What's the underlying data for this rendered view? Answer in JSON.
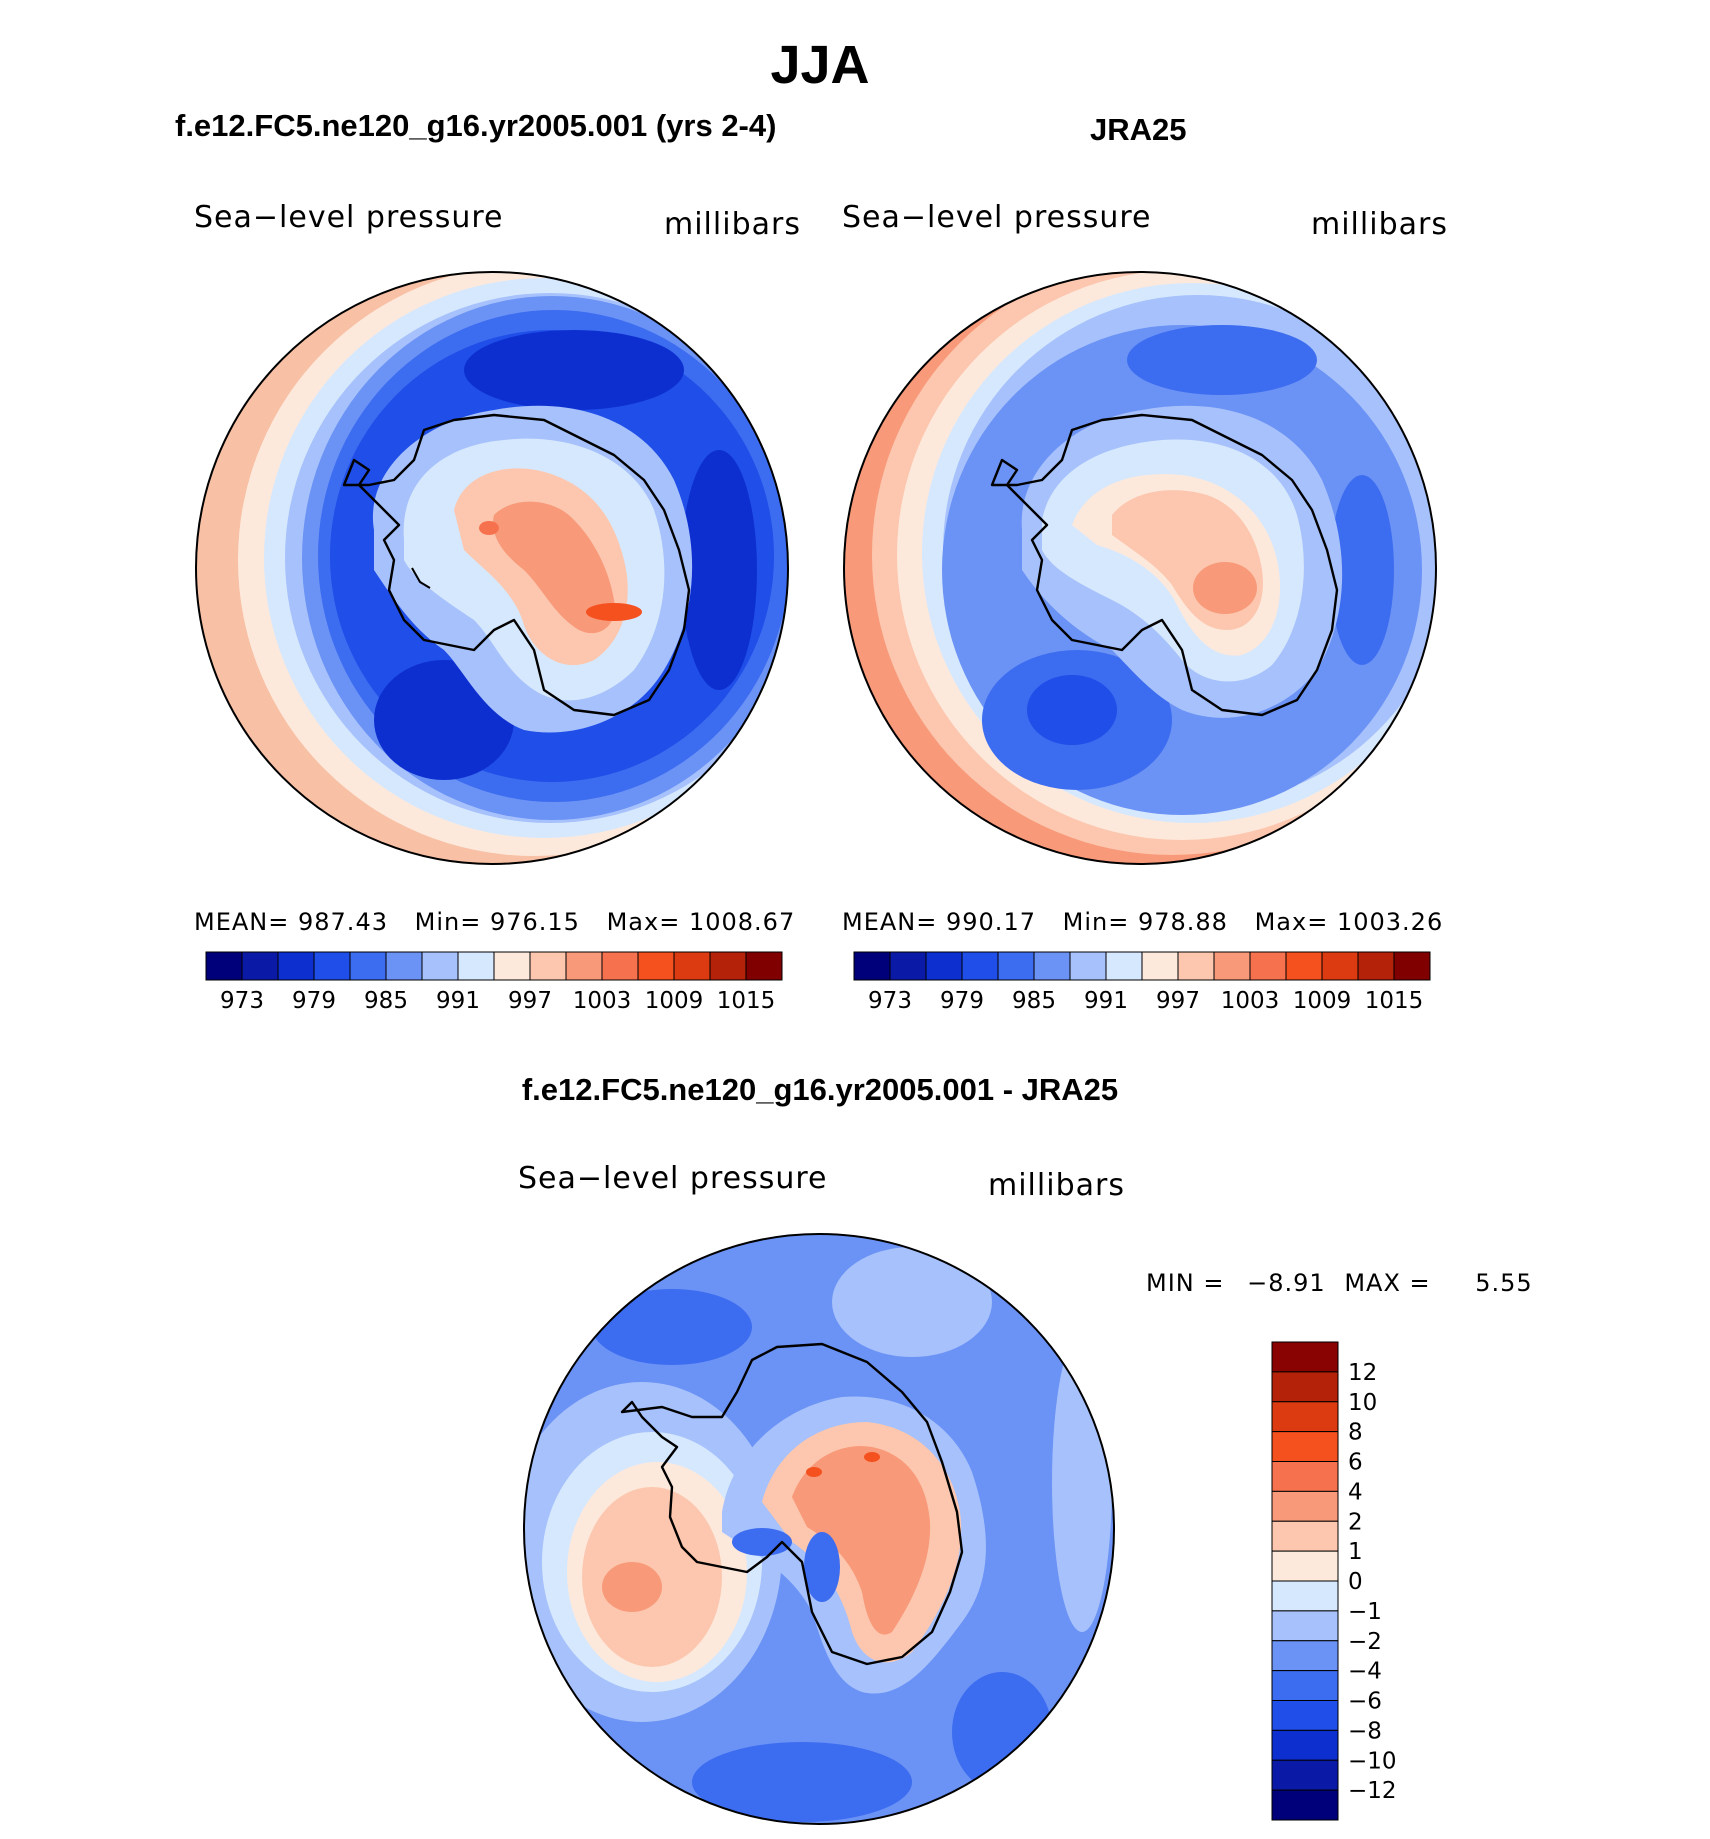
{
  "season": "JJA",
  "panels": {
    "model": {
      "title": "f.e12.FC5.ne120_g16.yr2005.001 (yrs 2-4)",
      "variable": "Sea−level pressure",
      "units": "millibars",
      "stats": {
        "mean_label": "MEAN=",
        "mean": "987.43",
        "min_label": "Min=",
        "min": "976.15",
        "max_label": "Max=",
        "max": "1008.67"
      }
    },
    "obs": {
      "title": "JRA25",
      "variable": "Sea−level pressure",
      "units": "millibars",
      "stats": {
        "mean_label": "MEAN=",
        "mean": "990.17",
        "min_label": "Min=",
        "min": "978.88",
        "max_label": "Max=",
        "max": "1003.26"
      }
    },
    "diff": {
      "title": "f.e12.FC5.ne120_g16.yr2005.001 - JRA25",
      "variable": "Sea−level pressure",
      "units": "millibars",
      "stats": {
        "min_label": "MIN =",
        "min": "−8.91",
        "max_label": "MAX =",
        "max": "5.55"
      }
    }
  },
  "colorbar_abs": {
    "colors": [
      "#00007a",
      "#0b1aa6",
      "#0d2fd0",
      "#1f4ee8",
      "#3c6cf0",
      "#6b92f5",
      "#a6c1fb",
      "#d6e8fd",
      "#fde9dc",
      "#fcc7ae",
      "#f8997a",
      "#f6724e",
      "#f4511e",
      "#dc3a10",
      "#b4220a",
      "#800000"
    ],
    "tick_labels": [
      "973",
      "979",
      "985",
      "991",
      "997",
      "1003",
      "1009",
      "1015"
    ]
  },
  "colorbar_diff": {
    "colors_top_to_bottom": [
      "#8a0303",
      "#b4220a",
      "#dc3a10",
      "#f4511e",
      "#f6724e",
      "#f8997a",
      "#fcc7ae",
      "#fde9dc",
      "#d6e8fd",
      "#a6c1fb",
      "#6b92f5",
      "#3c6cf0",
      "#1f4ee8",
      "#0d2fd0",
      "#0b1aa6",
      "#00007a"
    ],
    "tick_labels": [
      "12",
      "10",
      "8",
      "6",
      "4",
      "2",
      "1",
      "0",
      "−1",
      "−2",
      "−4",
      "−6",
      "−8",
      "−10",
      "−12"
    ]
  },
  "chart_data": [
    {
      "type": "heatmap",
      "title": "f.e12.FC5.ne120_g16.yr2005.001 (yrs 2-4)",
      "projection": "south polar stereographic",
      "variable": "Sea-level pressure",
      "units": "millibars",
      "mean": 987.43,
      "min": 976.15,
      "max": 1008.67,
      "levels": [
        973,
        976,
        979,
        982,
        985,
        988,
        991,
        994,
        997,
        1000,
        1003,
        1006,
        1009,
        1012,
        1015
      ]
    },
    {
      "type": "heatmap",
      "title": "JRA25",
      "projection": "south polar stereographic",
      "variable": "Sea-level pressure",
      "units": "millibars",
      "mean": 990.17,
      "min": 978.88,
      "max": 1003.26,
      "levels": [
        973,
        976,
        979,
        982,
        985,
        988,
        991,
        994,
        997,
        1000,
        1003,
        1006,
        1009,
        1012,
        1015
      ]
    },
    {
      "type": "heatmap",
      "title": "f.e12.FC5.ne120_g16.yr2005.001 - JRA25",
      "projection": "south polar stereographic",
      "variable": "Sea-level pressure",
      "units": "millibars",
      "min": -8.91,
      "max": 5.55,
      "levels": [
        -12,
        -10,
        -8,
        -6,
        -4,
        -2,
        -1,
        0,
        1,
        2,
        4,
        6,
        8,
        10,
        12
      ]
    }
  ]
}
